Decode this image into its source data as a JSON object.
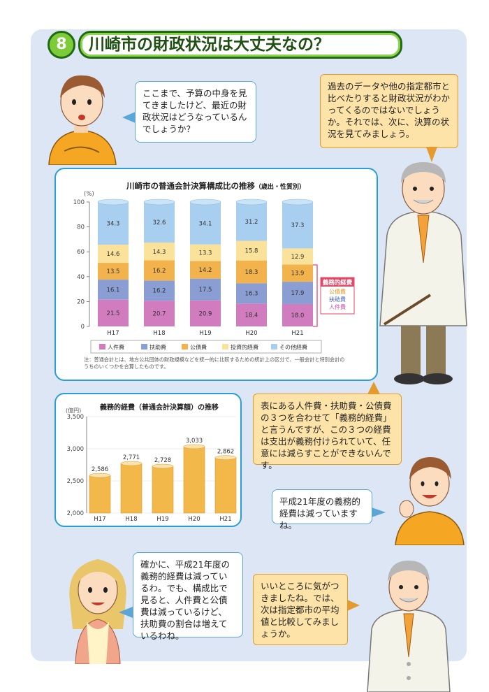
{
  "header": {
    "number": "8",
    "title": "川崎市の財政状況は大丈夫なの？"
  },
  "bubbles": {
    "boy1": "ここまで、予算の中身を見てきましたけど、最近の財政状況はどうなっているんでしょうか？",
    "prof1": "過去のデータや他の指定都市と比べたりすると財政状況がわかってくるのではないでしょうか。それでは、次に、決算の状況を見てみましょう。",
    "prof2": "表にある人件費・扶助費・公債費の３つを合わせて「義務的経費」と言うんですが、この３つの経費は支出が義務付けられていて、任意には減らすことができないんです。",
    "boy2": "平成21年度の義務的経費は減っていますね。",
    "woman": "確かに、平成21年度の義務的経費は減っているわ。でも、構成比で見ると、人件費と公債費は減っているけど、扶助費の割合は増えているわね。",
    "prof3": "いいところに気がつきましたね。では、次は指定都市の平均値と比較してみましょうか。"
  },
  "chart_data": [
    {
      "type": "bar",
      "stacked": true,
      "title": "川崎市の普通会計決算構成比の推移",
      "subtitle": "（歳出・性質別）",
      "unit_label": "(%)",
      "categories": [
        "H17",
        "H18",
        "H19",
        "H20",
        "H21"
      ],
      "ylim": [
        0,
        100
      ],
      "yticks": [
        0,
        20,
        40,
        60,
        80,
        100
      ],
      "series": [
        {
          "name": "人件費",
          "color": "#d27cc0",
          "values": [
            21.5,
            20.7,
            20.9,
            18.4,
            18.0
          ]
        },
        {
          "name": "扶助費",
          "color": "#8a9ed4",
          "values": [
            16.1,
            16.2,
            17.5,
            16.3,
            17.9
          ]
        },
        {
          "name": "公債費",
          "color": "#f2b24c",
          "values": [
            13.5,
            16.2,
            14.2,
            18.3,
            13.9
          ]
        },
        {
          "name": "投資的経費",
          "color": "#fbe29a",
          "values": [
            14.6,
            14.3,
            13.3,
            15.8,
            12.9
          ]
        },
        {
          "name": "その他経費",
          "color": "#a9cff0",
          "values": [
            34.3,
            32.6,
            34.1,
            31.2,
            37.3
          ]
        }
      ],
      "bracket": {
        "title": "義務的経費",
        "items": [
          "公債費",
          "扶助費",
          "人件費"
        ]
      },
      "note": "注：普通会計とは、地方公共団体の財政規模などを統一的に比較するための統計上の区分で、一般会計と特別会計のうちのいくつかを合算したものです。"
    },
    {
      "type": "bar",
      "title": "義務的経費（普通会計決算額）の推移",
      "unit_label": "(億円)",
      "categories": [
        "H17",
        "H18",
        "H19",
        "H20",
        "H21"
      ],
      "values": [
        2586,
        2771,
        2728,
        3033,
        2862
      ],
      "value_labels": [
        "2,586",
        "2,771",
        "2,728",
        "3,033",
        "2,862"
      ],
      "ylim": [
        2000,
        3500
      ],
      "ytick_labels": [
        "2,000",
        "2,500",
        "3,000",
        "3,500"
      ],
      "color": "#f2b84a"
    }
  ]
}
